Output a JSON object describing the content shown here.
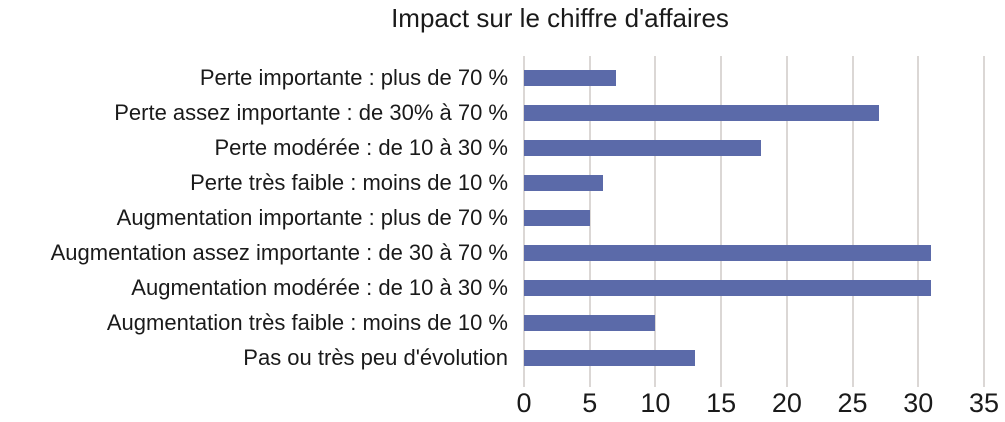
{
  "chart_data": {
    "type": "bar",
    "orientation": "horizontal",
    "title": "Impact sur le chiffre d'affaires",
    "categories": [
      "Perte importante : plus de 70 %",
      "Perte assez importante : de 30% à 70 %",
      "Perte modérée : de 10 à 30 %",
      "Perte très faible : moins de 10 %",
      "Augmentation importante : plus de 70 %",
      "Augmentation assez importante : de 30 à 70 %",
      "Augmentation modérée : de 10 à 30 %",
      "Augmentation très faible : moins de 10 %",
      "Pas ou très peu d'évolution"
    ],
    "values": [
      7,
      27,
      18,
      6,
      5,
      31,
      31,
      10,
      13
    ],
    "xlabel": "",
    "ylabel": "",
    "xlim": [
      0,
      35
    ],
    "xticks": [
      0,
      5,
      10,
      15,
      20,
      25,
      30,
      35
    ],
    "grid": true,
    "legend": false,
    "colors": {
      "bar": "#5B6AA9",
      "gridline": "#DBD7D5",
      "tick": "#DBD7D5",
      "text": "#1A1A1A",
      "background": "#FFFFFF"
    }
  }
}
